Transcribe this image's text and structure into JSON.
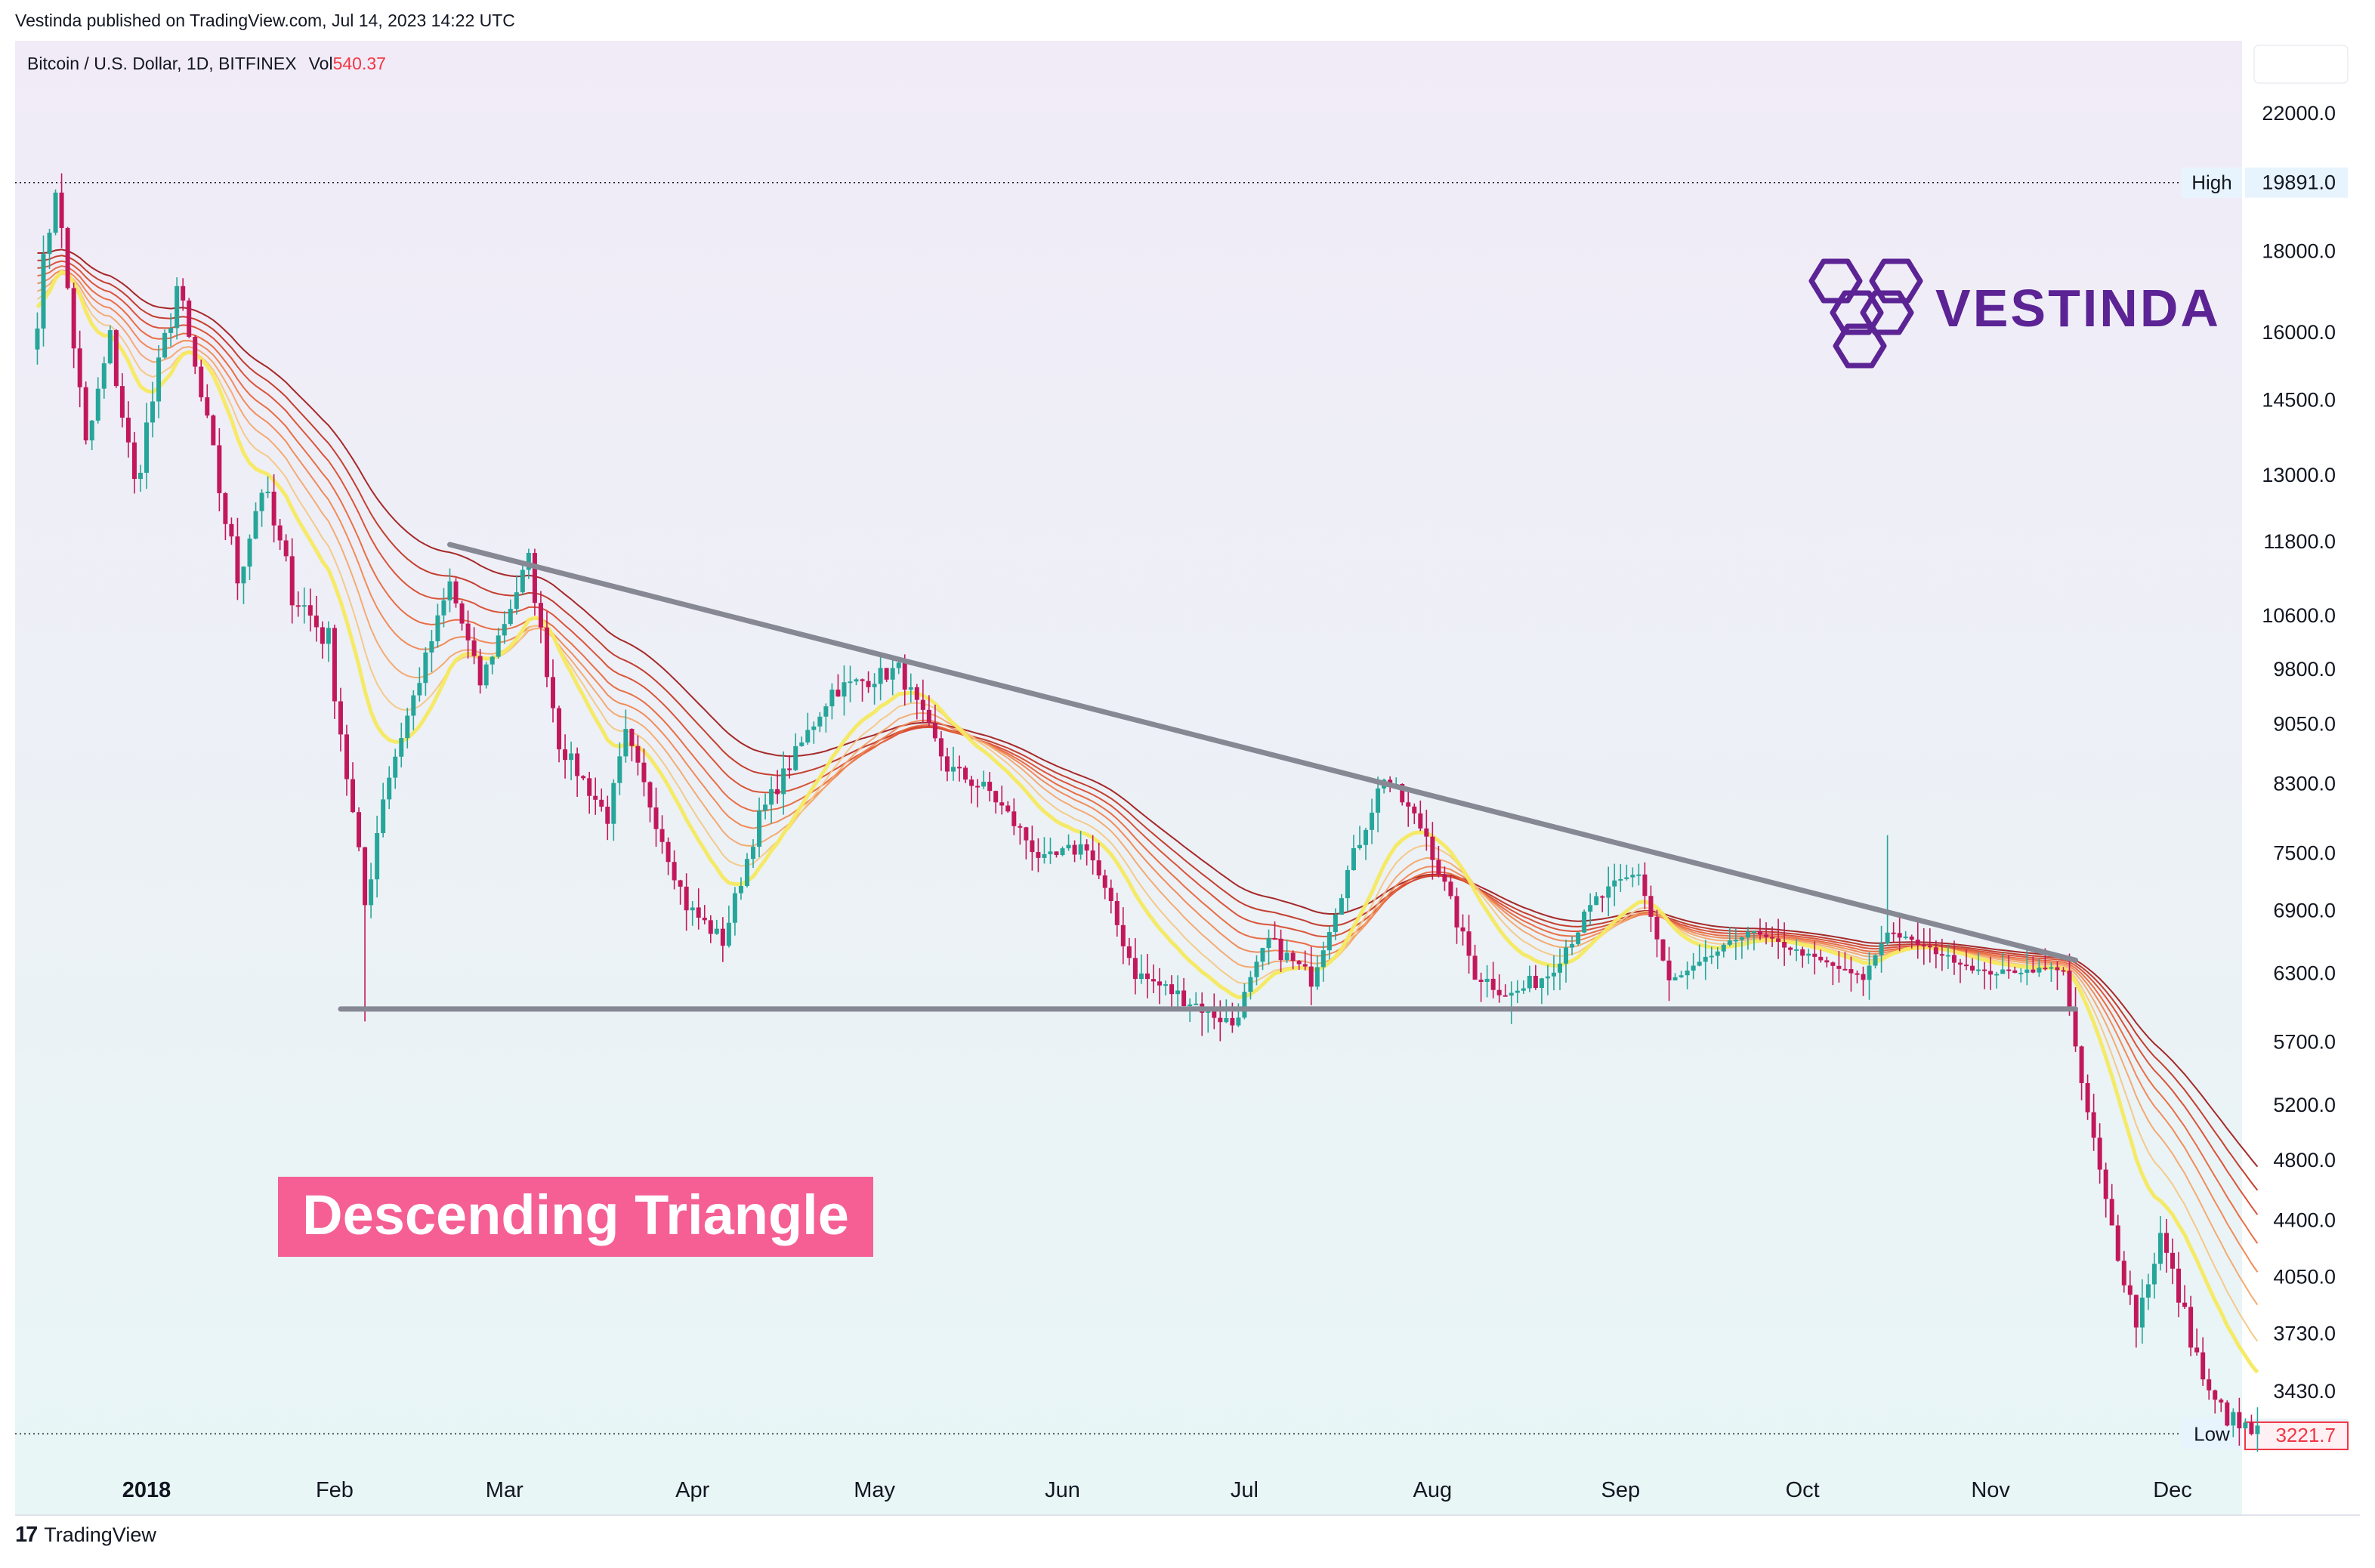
{
  "header": {
    "published": "Vestinda published on TradingView.com, Jul 14, 2023 14:22 UTC"
  },
  "legend": {
    "symbol": "Bitcoin / U.S. Dollar, 1D, BITFINEX",
    "vol_label": "Vol",
    "vol_value": "540.37",
    "vol_color": "#f23645"
  },
  "brand": {
    "name": "VESTINDA",
    "color": "#5b2394"
  },
  "footer": {
    "brand": "TradingView"
  },
  "annotation": {
    "text": "Descending Triangle",
    "bg": "#f55f93"
  },
  "colors": {
    "up": "#26a69a",
    "down": "#c2185b",
    "trendline": "#868993",
    "ribbon_fast": "#f5e960",
    "ribbon_slow": "#a11d1d"
  },
  "chart_data": {
    "type": "candlestick",
    "symbol": "Bitcoin / U.S. Dollar",
    "interval": "1D",
    "exchange": "BITFINEX",
    "y_scale": "log",
    "y_ticks": [
      "22000.0",
      "18000.0",
      "16000.0",
      "14500.0",
      "13000.0",
      "11800.0",
      "10600.0",
      "9800.0",
      "9050.0",
      "8300.0",
      "7500.0",
      "6900.0",
      "6300.0",
      "5700.0",
      "5200.0",
      "4800.0",
      "4400.0",
      "4050.0",
      "3730.0",
      "3430.0"
    ],
    "x_ticks": [
      "2018",
      "Feb",
      "Mar",
      "Apr",
      "May",
      "Jun",
      "Jul",
      "Aug",
      "Sep",
      "Oct",
      "Nov",
      "Dec"
    ],
    "ylim": [
      3050,
      24500
    ],
    "high": {
      "label": "High",
      "value": "19891.0"
    },
    "low": {
      "label": "Low",
      "value": "3224.0"
    },
    "last_price": "3221.7",
    "price_path": [
      [
        "2017-12-14",
        16500
      ],
      [
        "2017-12-17",
        19891
      ],
      [
        "2017-12-22",
        13500
      ],
      [
        "2017-12-26",
        15800
      ],
      [
        "2017-12-30",
        12800
      ],
      [
        "2018-01-06",
        17100
      ],
      [
        "2018-01-10",
        14500
      ],
      [
        "2018-01-16",
        11200
      ],
      [
        "2018-01-20",
        12800
      ],
      [
        "2018-01-25",
        11000
      ],
      [
        "2018-01-31",
        10200
      ],
      [
        "2018-02-06",
        6950
      ],
      [
        "2018-02-09",
        8200
      ],
      [
        "2018-02-20",
        11100
      ],
      [
        "2018-02-25",
        9600
      ],
      [
        "2018-03-05",
        11500
      ],
      [
        "2018-03-10",
        8800
      ],
      [
        "2018-03-18",
        7900
      ],
      [
        "2018-03-21",
        8900
      ],
      [
        "2018-03-31",
        6950
      ],
      [
        "2018-04-06",
        6600
      ],
      [
        "2018-04-12",
        7900
      ],
      [
        "2018-04-24",
        9500
      ],
      [
        "2018-05-05",
        9800
      ],
      [
        "2018-05-13",
        8500
      ],
      [
        "2018-05-20",
        8200
      ],
      [
        "2018-05-29",
        7400
      ],
      [
        "2018-06-05",
        7600
      ],
      [
        "2018-06-13",
        6300
      ],
      [
        "2018-06-22",
        6050
      ],
      [
        "2018-06-29",
        5850
      ],
      [
        "2018-07-05",
        6600
      ],
      [
        "2018-07-12",
        6250
      ],
      [
        "2018-07-18",
        7300
      ],
      [
        "2018-07-24",
        8400
      ],
      [
        "2018-07-31",
        7700
      ],
      [
        "2018-08-08",
        6300
      ],
      [
        "2018-08-14",
        6100
      ],
      [
        "2018-08-20",
        6300
      ],
      [
        "2018-08-28",
        7000
      ],
      [
        "2018-09-04",
        7300
      ],
      [
        "2018-09-09",
        6200
      ],
      [
        "2018-09-22",
        6700
      ],
      [
        "2018-10-11",
        6250
      ],
      [
        "2018-10-15",
        6700
      ],
      [
        "2018-10-31",
        6300
      ],
      [
        "2018-11-13",
        6350
      ],
      [
        "2018-11-15",
        5600
      ],
      [
        "2018-11-20",
        4500
      ],
      [
        "2018-11-25",
        3800
      ],
      [
        "2018-11-29",
        4300
      ],
      [
        "2018-12-07",
        3400
      ],
      [
        "2018-12-12",
        3250
      ],
      [
        "2018-12-15",
        3221.7
      ]
    ],
    "wicks": [
      [
        "2018-02-06",
        5873
      ],
      [
        "2018-06-24",
        5750
      ],
      [
        "2018-08-14",
        5850
      ],
      [
        "2018-10-15",
        7700
      ]
    ],
    "overlays": [
      {
        "type": "trendline",
        "from": [
          "2018-02-20",
          11750
        ],
        "to": [
          "2018-11-15",
          6420
        ]
      },
      {
        "type": "horizontal_segment",
        "from": [
          "2018-02-02",
          5980
        ],
        "to": [
          "2018-11-15",
          5980
        ]
      },
      {
        "type": "ribbon",
        "count": 8
      }
    ]
  }
}
